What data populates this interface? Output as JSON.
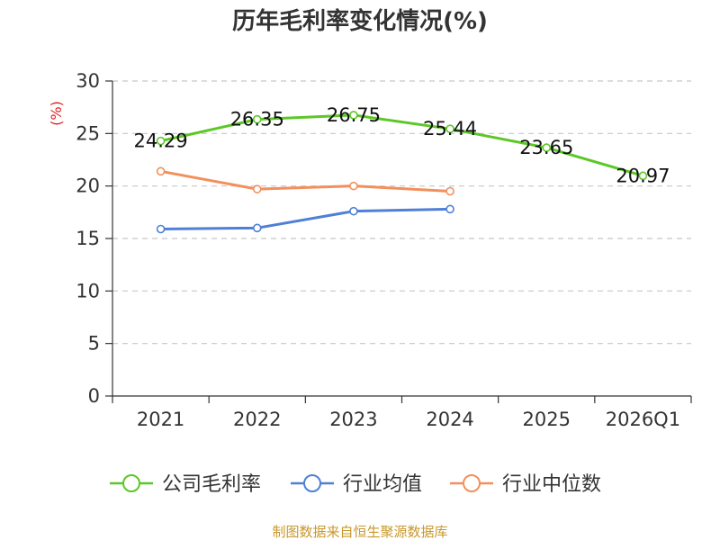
{
  "chart_data": {
    "type": "line",
    "title": "历年毛利率变化情况(%)",
    "ylabel": "(%)",
    "xlabel": "",
    "categories": [
      "2021",
      "2022",
      "2023",
      "2024",
      "2025",
      "2026Q1"
    ],
    "ylim": [
      0,
      30
    ],
    "yticks": [
      0,
      5,
      10,
      15,
      20,
      25,
      30
    ],
    "grid": true,
    "legend_position": "bottom",
    "series": [
      {
        "name": "公司毛利率",
        "color": "#5cc726",
        "values": [
          24.29,
          26.35,
          26.75,
          25.44,
          23.65,
          20.97
        ],
        "labels": [
          "24.29",
          "26.35",
          "26.75",
          "25.44",
          "23.65",
          "20.97"
        ]
      },
      {
        "name": "行业均值",
        "color": "#4f80d6",
        "values": [
          15.9,
          16.0,
          17.6,
          17.8,
          null,
          null
        ]
      },
      {
        "name": "行业中位数",
        "color": "#f38f5b",
        "values": [
          21.4,
          19.7,
          20.0,
          19.5,
          null,
          null
        ]
      }
    ],
    "source": "制图数据来自恒生聚源数据库"
  }
}
